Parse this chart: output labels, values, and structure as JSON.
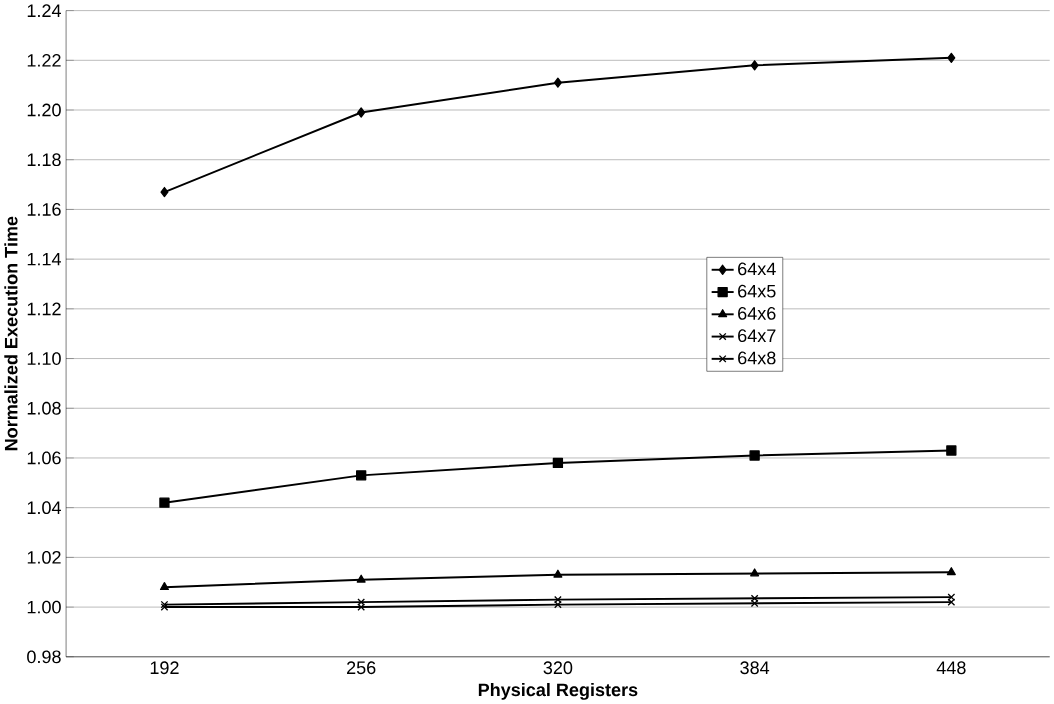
{
  "chart_data": {
    "type": "line",
    "xlabel": "Physical Registers",
    "ylabel": "Normalized Execution Time",
    "categories": [
      "192",
      "256",
      "320",
      "384",
      "448"
    ],
    "series": [
      {
        "name": "64x4",
        "color": "#000000",
        "marker": "diamond",
        "values": [
          1.167,
          1.199,
          1.211,
          1.218,
          1.221
        ]
      },
      {
        "name": "64x5",
        "color": "#000000",
        "marker": "square",
        "values": [
          1.042,
          1.053,
          1.058,
          1.061,
          1.063
        ]
      },
      {
        "name": "64x6",
        "color": "#000000",
        "marker": "triangle",
        "values": [
          1.008,
          1.011,
          1.013,
          1.0135,
          1.014
        ]
      },
      {
        "name": "64x7",
        "color": "#000000",
        "marker": "cross",
        "values": [
          1.001,
          1.002,
          1.003,
          1.0035,
          1.004
        ]
      },
      {
        "name": "64x8",
        "color": "#000000",
        "marker": "cross",
        "values": [
          1.0,
          1.0,
          1.001,
          1.0015,
          1.002
        ]
      }
    ],
    "ylim": [
      0.98,
      1.24
    ],
    "yticks": [
      0.98,
      {
        "value": 1.0,
        "label": "1.00"
      },
      1.02,
      1.04,
      1.06,
      1.08,
      {
        "value": 1.1,
        "label": "1.10"
      },
      1.12,
      1.14,
      1.16,
      1.18,
      {
        "value": 1.2,
        "label": "1.20"
      },
      1.22,
      1.24
    ],
    "grid": "y",
    "legend": "right",
    "line_style": "solid"
  }
}
